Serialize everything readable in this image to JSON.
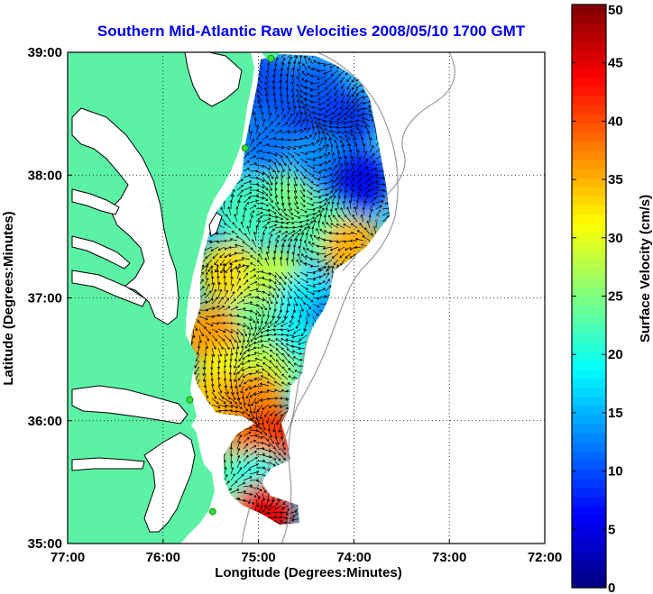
{
  "chart_data": {
    "type": "heatmap",
    "title": "Southern Mid-Atlantic Raw Velocities 2008/05/10 1700 GMT",
    "title_color": "#0000ee",
    "xlabel": "Longitude (Degrees:Minutes)",
    "ylabel": "Latitude (Degrees:Minutes)",
    "xlim": [
      -77,
      -72
    ],
    "ylim": [
      35,
      39
    ],
    "xticks": [
      {
        "value": -77,
        "label": "77:00"
      },
      {
        "value": -76,
        "label": "76:00"
      },
      {
        "value": -75,
        "label": "75:00"
      },
      {
        "value": -74,
        "label": "74:00"
      },
      {
        "value": -73,
        "label": "73:00"
      },
      {
        "value": -72,
        "label": "72:00"
      }
    ],
    "yticks": [
      {
        "value": 35,
        "label": "35:00"
      },
      {
        "value": 36,
        "label": "36:00"
      },
      {
        "value": 37,
        "label": "37:00"
      },
      {
        "value": 38,
        "label": "38:00"
      },
      {
        "value": 39,
        "label": "39:00"
      }
    ],
    "grid": true,
    "colorbar": {
      "label": "Surface Velocity (cm/s)",
      "range": [
        0,
        50
      ],
      "ticks": [
        {
          "value": 0,
          "label": "0"
        },
        {
          "value": 5,
          "label": "5"
        },
        {
          "value": 10,
          "label": "10"
        },
        {
          "value": 15,
          "label": "15"
        },
        {
          "value": 20,
          "label": "20"
        },
        {
          "value": 25,
          "label": "25"
        },
        {
          "value": 30,
          "label": "30"
        },
        {
          "value": 35,
          "label": "35"
        },
        {
          "value": 40,
          "label": "40"
        },
        {
          "value": 45,
          "label": "45"
        },
        {
          "value": 50,
          "label": "50"
        }
      ]
    },
    "land_color": "#5cf2a6",
    "stations": [
      {
        "lon": -74.87,
        "lat": 38.95
      },
      {
        "lon": -75.14,
        "lat": 38.22
      },
      {
        "lon": -75.72,
        "lat": 36.17
      },
      {
        "lon": -75.48,
        "lat": 35.26
      }
    ],
    "velocity_regions": [
      {
        "lon": -74.65,
        "lat": 38.55,
        "speed": 8
      },
      {
        "lon": -74.95,
        "lat": 38.75,
        "speed": 10
      },
      {
        "lon": -74.4,
        "lat": 38.7,
        "speed": 11
      },
      {
        "lon": -74.1,
        "lat": 38.45,
        "speed": 9
      },
      {
        "lon": -74.3,
        "lat": 38.1,
        "speed": 13
      },
      {
        "lon": -74.95,
        "lat": 38.3,
        "speed": 12
      },
      {
        "lon": -73.95,
        "lat": 37.95,
        "speed": 7
      },
      {
        "lon": -74.7,
        "lat": 37.75,
        "speed": 25
      },
      {
        "lon": -75.1,
        "lat": 37.7,
        "speed": 22
      },
      {
        "lon": -74.3,
        "lat": 37.55,
        "speed": 23
      },
      {
        "lon": -74.0,
        "lat": 37.4,
        "speed": 35
      },
      {
        "lon": -75.3,
        "lat": 37.2,
        "speed": 33
      },
      {
        "lon": -74.85,
        "lat": 37.15,
        "speed": 28
      },
      {
        "lon": -74.5,
        "lat": 36.95,
        "speed": 18
      },
      {
        "lon": -74.2,
        "lat": 36.8,
        "speed": 13
      },
      {
        "lon": -75.1,
        "lat": 36.75,
        "speed": 24
      },
      {
        "lon": -75.5,
        "lat": 36.7,
        "speed": 36
      },
      {
        "lon": -74.6,
        "lat": 36.55,
        "speed": 19
      },
      {
        "lon": -74.35,
        "lat": 36.4,
        "speed": 21
      },
      {
        "lon": -75.3,
        "lat": 36.35,
        "speed": 31
      },
      {
        "lon": -74.95,
        "lat": 36.4,
        "speed": 28
      },
      {
        "lon": -75.5,
        "lat": 36.15,
        "speed": 34
      },
      {
        "lon": -75.05,
        "lat": 36.15,
        "speed": 37
      },
      {
        "lon": -74.9,
        "lat": 35.85,
        "speed": 42
      },
      {
        "lon": -75.1,
        "lat": 35.7,
        "speed": 38
      },
      {
        "lon": -75.25,
        "lat": 35.5,
        "speed": 24
      },
      {
        "lon": -75.0,
        "lat": 35.5,
        "speed": 20
      },
      {
        "lon": -74.95,
        "lat": 35.25,
        "speed": 44
      }
    ]
  }
}
